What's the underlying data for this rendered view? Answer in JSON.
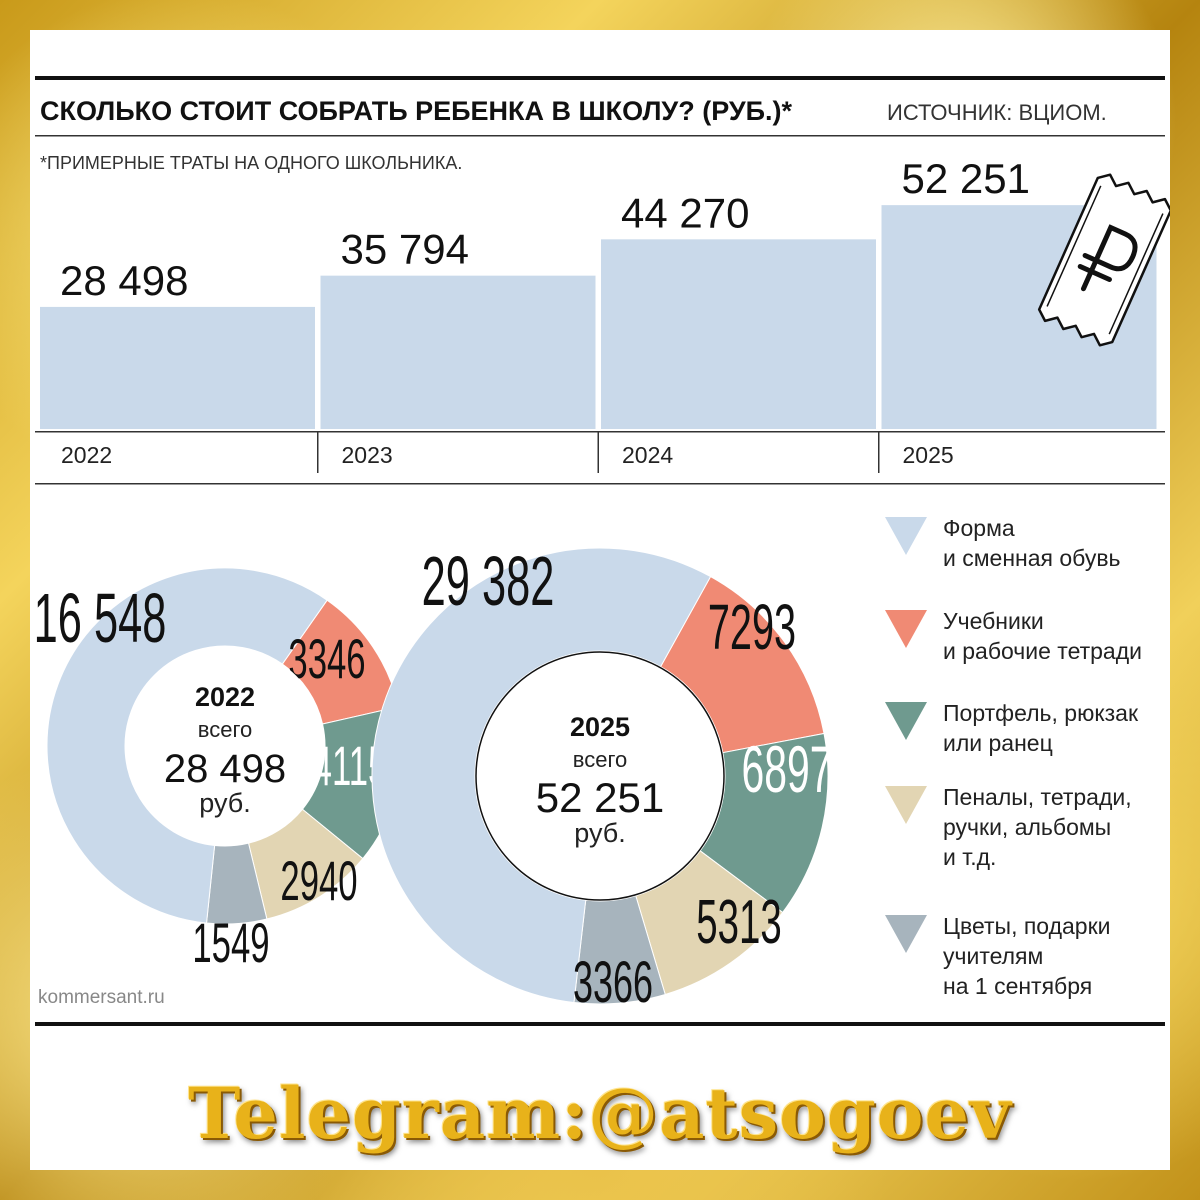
{
  "header": {
    "title": "СКОЛЬКО СТОИТ СОБРАТЬ РЕБЕНКА В ШКОЛУ? (РУБ.)*",
    "source": "ИСТОЧНИК: ВЦИОМ.",
    "footnote": "*ПРИМЕРНЫЕ ТРАТЫ НА ОДНОГО ШКОЛЬНИКА."
  },
  "chart_data": [
    {
      "type": "bar",
      "categories": [
        "2022",
        "2023",
        "2024",
        "2025"
      ],
      "values": [
        28498,
        35794,
        44270,
        52251
      ],
      "value_labels": [
        "28 498",
        "35 794",
        "44 270",
        "52 251"
      ],
      "title": "СКОЛЬКО СТОИТ СОБРАТЬ РЕБЕНКА В ШКОЛУ? (РУБ.)*",
      "bar_color": "#c9d9ea"
    },
    {
      "type": "pie",
      "variant": "donut",
      "center_year": "2022",
      "center_label": "всего",
      "center_total": "28 498",
      "center_unit": "руб.",
      "slices": [
        {
          "category": "Форма и сменная обувь",
          "value": 16548,
          "label": "16 548",
          "color": "#c9d9ea"
        },
        {
          "category": "Учебники и рабочие тетради",
          "value": 3346,
          "label": "3346",
          "color": "#f08a74"
        },
        {
          "category": "Портфель, рюкзак или ранец",
          "value": 4115,
          "label": "4115",
          "color": "#6f9a8f"
        },
        {
          "category": "Пеналы, тетради, ручки, альбомы и т.д.",
          "value": 2940,
          "label": "2940",
          "color": "#e2d5b3"
        },
        {
          "category": "Цветы, подарки учителям на 1 сентября",
          "value": 1549,
          "label": "1549",
          "color": "#a7b4bd"
        }
      ]
    },
    {
      "type": "pie",
      "variant": "donut",
      "center_year": "2025",
      "center_label": "всего",
      "center_total": "52 251",
      "center_unit": "руб.",
      "slices": [
        {
          "category": "Форма и сменная обувь",
          "value": 29382,
          "label": "29 382",
          "color": "#c9d9ea"
        },
        {
          "category": "Учебники и рабочие тетради",
          "value": 7293,
          "label": "7293",
          "color": "#f08a74"
        },
        {
          "category": "Портфель, рюкзак или ранец",
          "value": 6897,
          "label": "6897",
          "color": "#6f9a8f"
        },
        {
          "category": "Пеналы, тетради, ручки, альбомы и т.д.",
          "value": 5313,
          "label": "5313",
          "color": "#e2d5b3"
        },
        {
          "category": "Цветы, подарки учителям на 1 сентября",
          "value": 3366,
          "label": "3366",
          "color": "#a7b4bd"
        }
      ]
    }
  ],
  "legend": [
    {
      "lines": [
        "Форма",
        "и сменная обувь"
      ],
      "color": "#c9d9ea"
    },
    {
      "lines": [
        "Учебники",
        "и рабочие тетради"
      ],
      "color": "#f08a74"
    },
    {
      "lines": [
        "Портфель, рюкзак",
        "или ранец"
      ],
      "color": "#6f9a8f"
    },
    {
      "lines": [
        "Пеналы, тетради,",
        "ручки, альбомы",
        "и т.д."
      ],
      "color": "#e2d5b3"
    },
    {
      "lines": [
        "Цветы, подарки",
        "учителям",
        "на 1 сентября"
      ],
      "color": "#a7b4bd"
    }
  ],
  "credit": "kommersant.ru",
  "watermark": "Telegram:@atsogoev",
  "icon": "ruble-receipt-icon"
}
